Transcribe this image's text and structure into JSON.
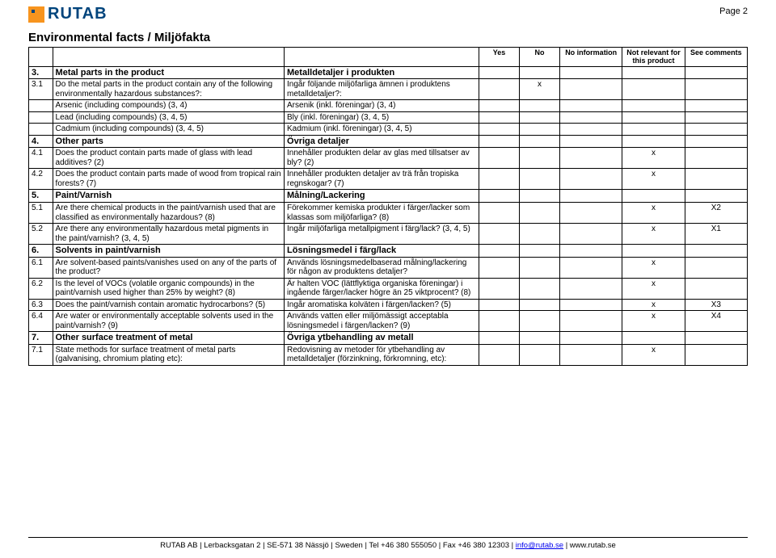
{
  "page_label": "Page 2",
  "logo_text": "RUTAB",
  "section_title": "Environmental facts / Miljöfakta",
  "headers": {
    "yes": "Yes",
    "no": "No",
    "noinfo": "No information",
    "notrel": "Not relevant for this product",
    "see": "See comments"
  },
  "rows": [
    {
      "num": "3.",
      "en": "Metal parts in the product",
      "sv": "Metalldetaljer i produkten",
      "bold": true
    },
    {
      "num": "3.1",
      "en": "Do the metal parts in the product contain any of the following environmentally hazardous substances?:",
      "sv": "Ingår följande miljöfarliga ämnen i produktens metalldetaljer?:",
      "no": "x"
    },
    {
      "num": "",
      "en": "Arsenic (including compounds) (3, 4)",
      "sv": "Arsenik (inkl. föreningar) (3, 4)"
    },
    {
      "num": "",
      "en": "Lead (including compounds) (3, 4, 5)",
      "sv": "Bly (inkl. föreningar) (3, 4, 5)"
    },
    {
      "num": "",
      "en": "Cadmium (including compounds) (3, 4, 5)",
      "sv": "Kadmium (inkl. föreningar) (3, 4, 5)"
    },
    {
      "num": "4.",
      "en": "Other parts",
      "sv": "Övriga detaljer",
      "bold": true
    },
    {
      "num": "4.1",
      "en": "Does the product contain parts made of glass with lead additives? (2)",
      "sv": "Innehåller produkten delar av glas med tillsatser av bly? (2)",
      "notrel": "x"
    },
    {
      "num": "4.2",
      "en": "Does the product contain parts made of wood from tropical rain forests? (7)",
      "sv": "Innehåller produkten detaljer av trä från tropiska regnskogar? (7)",
      "notrel": "x"
    },
    {
      "num": "5.",
      "en": "Paint/Varnish",
      "sv": "Målning/Lackering",
      "bold": true
    },
    {
      "num": "5.1",
      "en": "Are there chemical products in the paint/varnish used that are classified as environmentally hazardous? (8)",
      "sv": "Förekommer kemiska produkter i färger/lacker som klassas som miljöfarliga? (8)",
      "notrel": "x",
      "see": "X2"
    },
    {
      "num": "5.2",
      "en": "Are there any environmentally hazardous metal pigments in the paint/varnish? (3, 4, 5)",
      "sv": "Ingår miljöfarliga metallpigment i färg/lack? (3, 4, 5)",
      "notrel": "x",
      "see": "X1"
    },
    {
      "num": "6.",
      "en": "Solvents in paint/varnish",
      "sv": "Lösningsmedel i färg/lack",
      "bold": true
    },
    {
      "num": "6.1",
      "en": "Are solvent-based paints/vanishes used on any of the parts of the product?",
      "sv": "Används lösningsmedelbaserad målning/lackering för någon av produktens detaljer?",
      "notrel": "x"
    },
    {
      "num": "6.2",
      "en": "Is the level of VOCs (volatile organic compounds) in the paint/varnish used higher than 25% by weight? (8)",
      "sv": "Är halten VOC (lättflyktiga organiska föreningar) i ingående färger/lacker högre än 25 viktprocent? (8)",
      "notrel": "x"
    },
    {
      "num": "6.3",
      "en": "Does the paint/varnish contain aromatic hydrocarbons? (5)",
      "sv": "Ingår aromatiska kolväten i färgen/lacken? (5)",
      "notrel": "x",
      "see": "X3"
    },
    {
      "num": "6.4",
      "en": "Are water or environmentally acceptable solvents used in the paint/varnish? (9)",
      "sv": "Används vatten eller miljömässigt acceptabla lösningsmedel i färgen/lacken? (9)",
      "notrel": "x",
      "see": "X4"
    },
    {
      "num": "7.",
      "en": "Other surface treatment of metal",
      "sv": "Övriga ytbehandling av metall",
      "bold": true
    },
    {
      "num": "7.1",
      "en": "State methods for surface treatment of metal parts (galvanising, chromium plating etc):",
      "sv": "Redovisning av metoder för ytbehandling av metalldetaljer (förzinkning, förkromning, etc):",
      "notrel": "x"
    }
  ],
  "footer": {
    "prefix": "RUTAB AB | Lerbacksgatan 2 | SE-571 38 Nässjö | Sweden | Tel +46 380 555050 | Fax +46 380 12303 | ",
    "email": "info@rutab.se",
    "suffix": " | www.rutab.se"
  }
}
